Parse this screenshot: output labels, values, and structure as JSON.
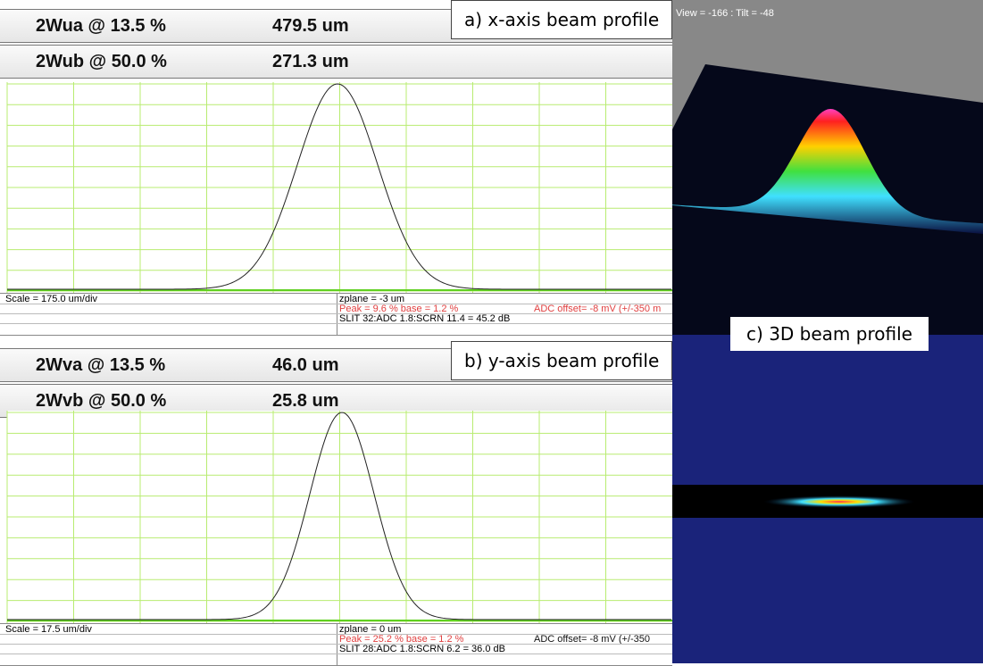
{
  "panels": [
    {
      "label": "a) x-axis beam profile",
      "rows": [
        {
          "name": "2Wua @ 13.5 %",
          "value": "479.5 um"
        },
        {
          "name": "2Wub @ 50.0 %",
          "value": "271.3 um"
        }
      ],
      "scale": "Scale = 175.0 um/div",
      "zplane": "zplane = -3 um",
      "peak": "Peak = 9.6 %  base = 1.2 %",
      "adc": "ADC offset= -8 mV (+/-350 m",
      "slit": "SLIT 32:ADC 1.8:SCRN 11.4 = 45.2 dB"
    },
    {
      "label": "b) y-axis beam profile",
      "rows": [
        {
          "name": "2Wva @ 13.5 %",
          "value": "46.0 um"
        },
        {
          "name": "2Wvb @ 50.0 %",
          "value": "25.8 um"
        }
      ],
      "scale": "Scale = 17.5 um/div",
      "zplane": "zplane = 0 um",
      "peak": "Peak = 25.2 %  base = 1.2 %",
      "adc": "ADC offset= -8 mV (+/-350",
      "slit": "SLIT 28:ADC 1.8:SCRN 6.2 = 36.0 dB"
    }
  ],
  "view3d": {
    "view": "View = -166 : Tilt = -48",
    "label": "c) 3D beam profile"
  }
}
